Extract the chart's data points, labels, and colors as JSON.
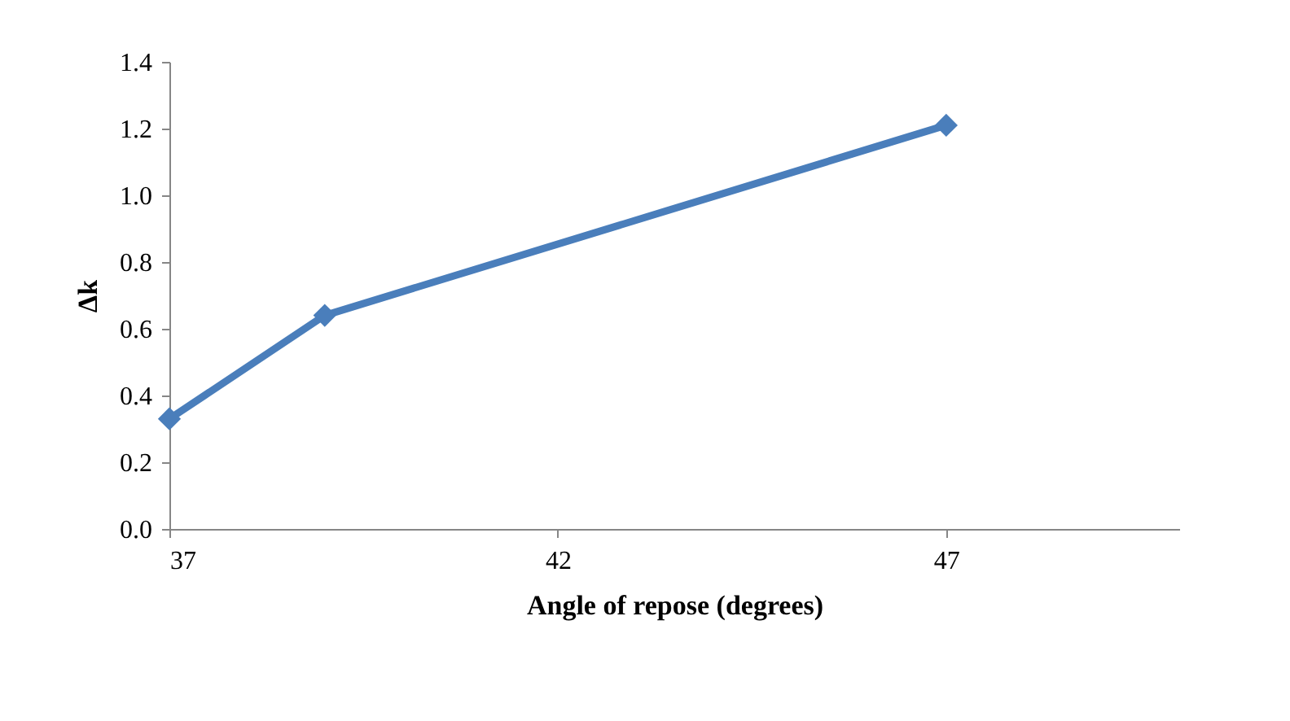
{
  "chart_data": {
    "type": "line",
    "xlabel": "Angle of repose (degrees)",
    "ylabel": "Δk",
    "x": [
      37,
      39,
      47
    ],
    "series": [
      {
        "color": "#4a7ebb",
        "values": [
          0.33,
          0.64,
          1.21
        ]
      }
    ],
    "xlim": [
      37,
      50
    ],
    "xticks": [
      37,
      42,
      47
    ],
    "ylim": [
      0,
      1.4
    ],
    "yticks": [
      {
        "value": 0,
        "label": "0.0"
      },
      0.2,
      0.4,
      0.6,
      0.8,
      {
        "value": 1,
        "label": "1.0"
      },
      1.2,
      1.4
    ],
    "grid": false,
    "marker": "diamond",
    "line_style": "solid"
  }
}
